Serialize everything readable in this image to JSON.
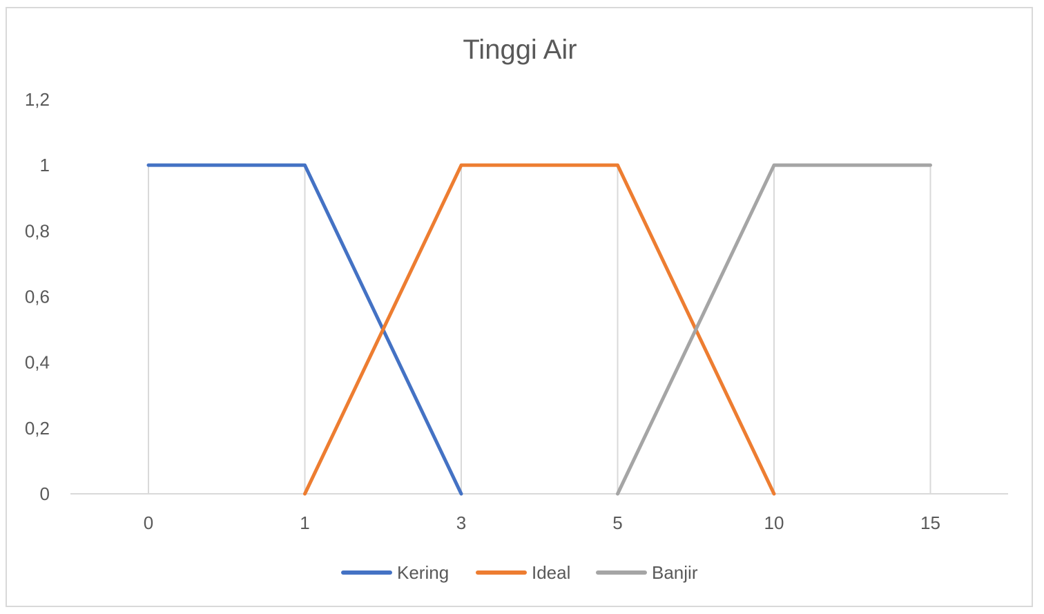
{
  "chart_data": {
    "type": "line",
    "title": "Tinggi Air",
    "categories": [
      "0",
      "1",
      "3",
      "5",
      "10",
      "15"
    ],
    "ylim": [
      0,
      1.2
    ],
    "y_ticks": [
      "0",
      "0,2",
      "0,4",
      "0,6",
      "0,8",
      "1",
      "1,2"
    ],
    "grid": "vertical",
    "legend_position": "bottom",
    "series": [
      {
        "name": "Kering",
        "color": "#4472c4",
        "values": [
          1,
          1,
          0,
          null,
          null,
          null
        ]
      },
      {
        "name": "Ideal",
        "color": "#ed7d31",
        "values": [
          null,
          0,
          1,
          1,
          0,
          null
        ]
      },
      {
        "name": "Banjir",
        "color": "#a5a5a5",
        "values": [
          null,
          null,
          null,
          0,
          1,
          1
        ]
      }
    ]
  }
}
